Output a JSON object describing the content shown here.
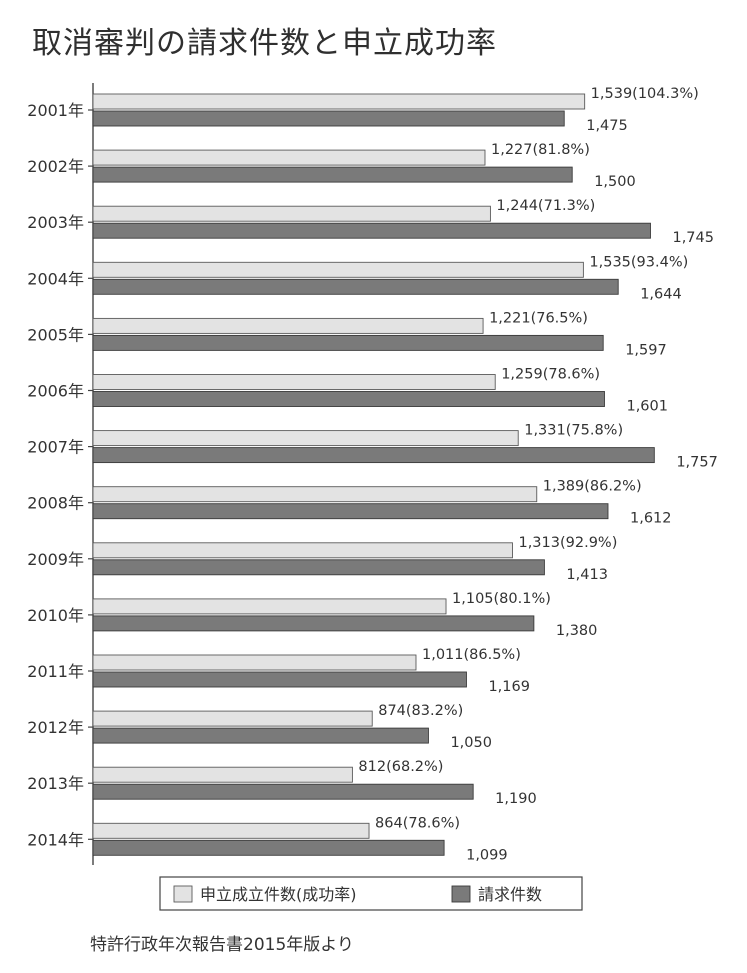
{
  "chart_data": {
    "type": "bar",
    "orientation": "horizontal",
    "title": "取消審判の請求件数と申立成功率",
    "categories": [
      "2001年",
      "2002年",
      "2003年",
      "2004年",
      "2005年",
      "2006年",
      "2007年",
      "2008年",
      "2009年",
      "2010年",
      "2011年",
      "2012年",
      "2013年",
      "2014年"
    ],
    "series": [
      {
        "name": "申立成立件数(成功率)",
        "color": "#e3e3e3",
        "values": [
          1539,
          1227,
          1244,
          1535,
          1221,
          1259,
          1331,
          1389,
          1313,
          1105,
          1011,
          874,
          812,
          864
        ],
        "labels": [
          "1,539(104.3%)",
          "1,227(81.8%)",
          "1,244(71.3%)",
          "1,535(93.4%)",
          "1,221(76.5%)",
          "1,259(78.6%)",
          "1,331(75.8%)",
          "1,389(86.2%)",
          "1,313(92.9%)",
          "1,105(80.1%)",
          "1,011(86.5%)",
          "874(83.2%)",
          "812(68.2%)",
          "864(78.6%)"
        ]
      },
      {
        "name": "請求件数",
        "color": "#7a7a7a",
        "values": [
          1475,
          1500,
          1745,
          1644,
          1597,
          1601,
          1757,
          1612,
          1413,
          1380,
          1169,
          1050,
          1190,
          1099
        ],
        "labels": [
          "1,475",
          "1,500",
          "1,745",
          "1,644",
          "1,597",
          "1,601",
          "1,757",
          "1,612",
          "1,413",
          "1,380",
          "1,169",
          "1,050",
          "1,190",
          "1,099"
        ]
      }
    ],
    "xlim": [
      0,
      1900
    ],
    "grid": false,
    "legend_position": "bottom"
  },
  "footer": {
    "source": "特許行政年次報告書2015年版より"
  }
}
